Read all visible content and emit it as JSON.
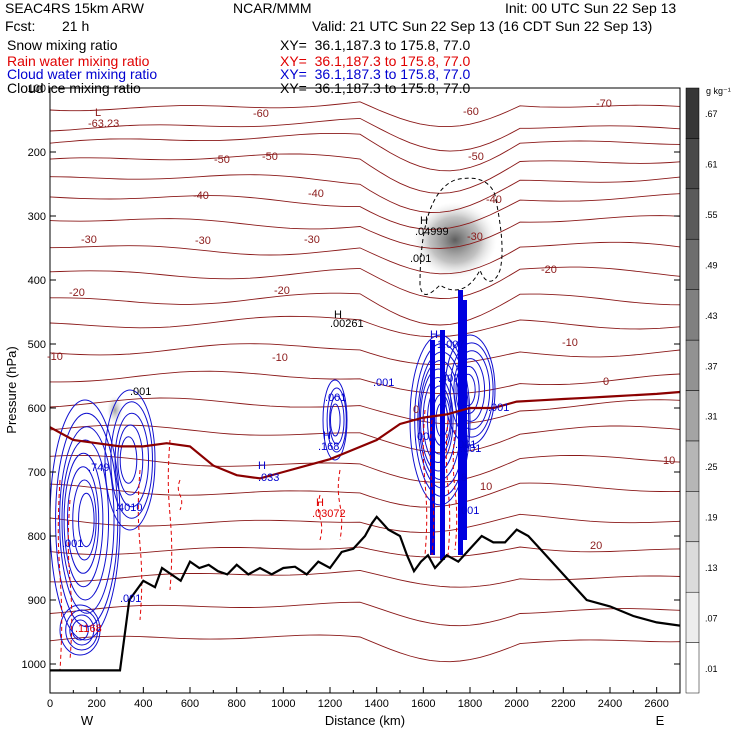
{
  "header": {
    "model": "SEAC4RS 15km ARW",
    "org": "NCAR/MMM",
    "init": "Init: 00 UTC Sun 22 Sep 13",
    "fcst_label": "Fcst:",
    "fcst_value": "21 h",
    "valid": "Valid: 21 UTC Sun 22 Sep 13 (16 CDT Sun 22 Sep 13)"
  },
  "fields": [
    {
      "name": "Snow mixing ratio",
      "xy": "XY=  36.1,187.3 to 175.8, 77.0",
      "color": "#000000"
    },
    {
      "name": "Rain water mixing ratio",
      "xy": "XY=  36.1,187.3 to 175.8, 77.0",
      "color": "#e00000"
    },
    {
      "name": "Cloud water mixing ratio",
      "xy": "XY=  36.1,187.3 to 175.8, 77.0",
      "color": "#0000d0"
    },
    {
      "name": "Cloud ice mixing ratio",
      "xy": "XY=  36.1,187.3 to 175.8, 77.0",
      "color": "#000000"
    }
  ],
  "chart_data": {
    "type": "contour",
    "xlabel": "Distance (km)",
    "ylabel": "Pressure (hPa)",
    "xlim": [
      0,
      2700
    ],
    "ylim": [
      1050,
      100
    ],
    "x_ticks": [
      "0",
      "200",
      "400",
      "600",
      "800",
      "1000",
      "1200",
      "1400",
      "1600",
      "1800",
      "2000",
      "2200",
      "2400",
      "2600"
    ],
    "y_ticks": [
      "100",
      "200",
      "300",
      "400",
      "500",
      "600",
      "700",
      "800",
      "900",
      "1000"
    ],
    "y_tick_values": [
      100,
      200,
      300,
      400,
      500,
      600,
      700,
      800,
      900,
      1000
    ],
    "x_tick_values": [
      0,
      200,
      400,
      600,
      800,
      1000,
      1200,
      1400,
      1600,
      1800,
      2000,
      2200,
      2400,
      2600
    ],
    "direction_labels": {
      "left": "W",
      "right": "E"
    },
    "colorbar": {
      "unit": "g kg⁻¹",
      "labels": [
        ".01",
        ".07",
        ".13",
        ".19",
        ".25",
        ".31",
        ".37",
        ".43",
        ".49",
        ".55",
        ".61",
        ".67"
      ]
    },
    "temperature_labels": [
      "-70",
      "-60",
      "-60",
      "-50",
      "-50",
      "-50",
      "-40",
      "-40",
      "-40",
      "-30",
      "-30",
      "-30",
      "-30",
      "-20",
      "-20",
      "-20",
      "-10",
      "-10",
      "-10",
      "0",
      "0",
      "10",
      "10",
      "20"
    ],
    "extrema": [
      {
        "type": "L",
        "value": "-63.23"
      },
      {
        "type": "H",
        "value": ".04999"
      },
      {
        "type": "H",
        "value": ".00261"
      },
      {
        "type": "H",
        "value": "1.007"
      },
      {
        "type": "H",
        "value": ".168"
      },
      {
        "type": "H",
        "value": ".033"
      },
      {
        "type": "H",
        "value": ".03072"
      },
      {
        "type": "H",
        "value": ".749"
      },
      {
        "type": "H",
        "value": ".4010"
      },
      {
        "type": "H",
        "value": ".1168"
      }
    ],
    "small_labels": [
      ".001",
      ".001",
      ".001",
      ".001",
      ".001",
      ".001",
      ".001",
      ".001",
      ".001",
      ".407",
      ".001",
      ".8",
      ".001"
    ],
    "terrain": {
      "x": [
        0,
        300,
        340,
        400,
        450,
        480,
        520,
        560,
        600,
        640,
        680,
        720,
        760,
        800,
        850,
        900,
        950,
        1000,
        1050,
        1100,
        1150,
        1200,
        1250,
        1300,
        1350,
        1380,
        1400,
        1450,
        1500,
        1530,
        1560,
        1590,
        1620,
        1650,
        1700,
        1750,
        1800,
        1850,
        1900,
        1950,
        2000,
        2050,
        2100,
        2200,
        2300,
        2400,
        2500,
        2600,
        2700
      ],
      "p": [
        1010,
        1010,
        900,
        870,
        880,
        850,
        860,
        870,
        840,
        850,
        845,
        855,
        860,
        845,
        860,
        850,
        860,
        850,
        848,
        860,
        840,
        850,
        825,
        820,
        800,
        780,
        770,
        790,
        800,
        830,
        855,
        840,
        830,
        850,
        830,
        840,
        820,
        800,
        810,
        810,
        790,
        800,
        820,
        860,
        900,
        910,
        925,
        935,
        940
      ]
    },
    "freezing_level": {
      "x": [
        0,
        100,
        200,
        300,
        400,
        500,
        600,
        700,
        800,
        900,
        1000,
        1100,
        1200,
        1300,
        1400,
        1500,
        1600,
        1700,
        1800,
        1900,
        2000,
        2100,
        2200,
        2300,
        2400,
        2500,
        2600,
        2700
      ],
      "p": [
        630,
        650,
        655,
        660,
        660,
        655,
        660,
        690,
        705,
        710,
        700,
        690,
        680,
        665,
        650,
        625,
        615,
        610,
        600,
        600,
        590,
        588,
        586,
        584,
        582,
        580,
        578,
        575
      ]
    },
    "notes_series": [
      {
        "name": "Snow mixing ratio",
        "color": "#000000",
        "style": "dashed"
      },
      {
        "name": "Rain water mixing ratio",
        "color": "#e00000",
        "style": "dashed"
      },
      {
        "name": "Cloud water mixing ratio",
        "color": "#0000d0",
        "style": "solid"
      },
      {
        "name": "Cloud ice mixing ratio",
        "color": "#808080",
        "style": "shaded"
      }
    ]
  }
}
